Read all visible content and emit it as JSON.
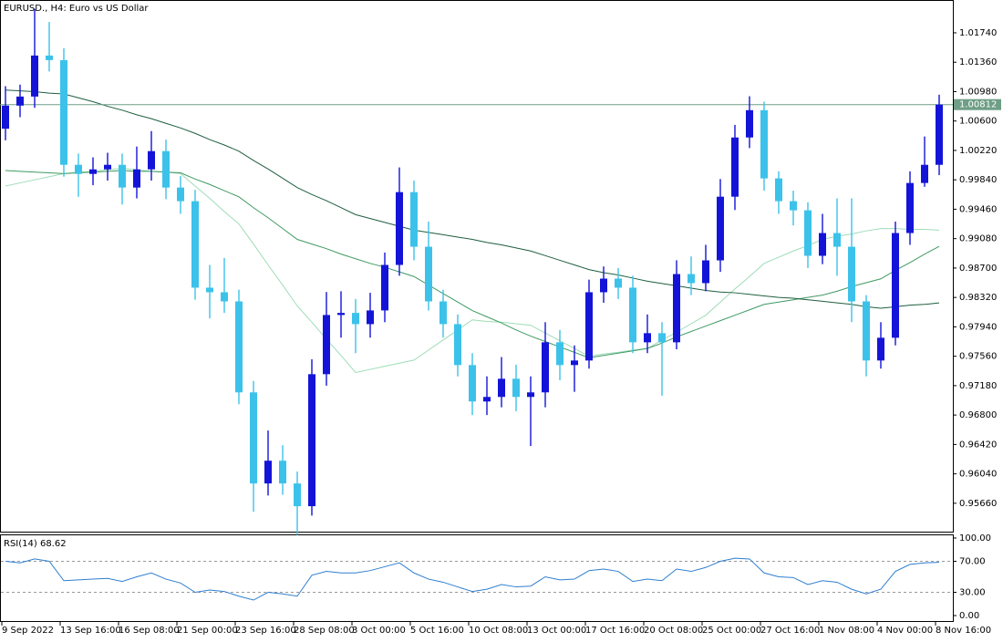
{
  "chart_data": [
    {
      "type": "candlestick",
      "title": "EURUSD., H4:  Euro vs US Dollar",
      "categories": [
        "9 Sep 2022",
        null,
        null,
        null,
        "13 Sep 16:00",
        null,
        null,
        null,
        "16 Sep 08:00",
        null,
        null,
        null,
        "21 Sep 00:00",
        null,
        null,
        null,
        "23 Sep 16:00",
        null,
        null,
        null,
        "28 Sep 08:00",
        null,
        null,
        null,
        "3 Oct 00:00",
        null,
        null,
        null,
        "5 Oct 16:00",
        null,
        null,
        null,
        "10 Oct 08:00",
        null,
        null,
        null,
        "13 Oct 00:00",
        null,
        null,
        null,
        "17 Oct 16:00",
        null,
        null,
        null,
        "20 Oct 08:00",
        null,
        null,
        null,
        "25 Oct 00:00",
        null,
        null,
        null,
        "27 Oct 16:00",
        null,
        null,
        null,
        "1 Nov 08:00",
        null,
        null,
        null,
        "4 Nov 00:00",
        null,
        null,
        null,
        "8 Nov 16:00"
      ],
      "open": [
        1.005,
        1.00799,
        1.00916,
        1.01446,
        1.01387,
        1.00034,
        0.99916,
        0.99975,
        1.00034,
        0.9974,
        0.99975,
        1.00211,
        0.9974,
        0.99564,
        0.98446,
        0.98387,
        0.98269,
        0.97093,
        0.95916,
        0.9621,
        0.95916,
        0.95622,
        0.97328,
        0.98093,
        0.9812,
        0.97975,
        0.98152,
        0.9874,
        0.99681,
        0.98975,
        0.98269,
        0.97975,
        0.97446,
        0.96975,
        0.97034,
        0.97269,
        0.97034,
        0.97093,
        0.9774,
        0.97446,
        0.97505,
        0.98387,
        0.98563,
        0.98446,
        0.9774,
        0.97858,
        0.9774,
        0.98622,
        0.98505,
        0.98799,
        0.99622,
        1.00387,
        1.0074,
        0.99858,
        0.99564,
        0.99446,
        0.98858,
        0.99152,
        0.98975,
        0.98269,
        0.97505,
        0.97799,
        0.99152,
        0.99799,
        1.00034
      ],
      "high": [
        1.0105,
        1.0107,
        1.0205,
        1.0188,
        1.0154,
        1.0018,
        1.0013,
        1.0019,
        1.0018,
        1.0027,
        1.0047,
        1.0036,
        0.9989,
        0.9971,
        0.9874,
        0.9883,
        0.9842,
        0.9724,
        0.966,
        0.9641,
        0.9607,
        0.9752,
        0.9839,
        0.984,
        0.983,
        0.9838,
        0.989,
        1.0,
        0.9983,
        0.993,
        0.9842,
        0.981,
        0.976,
        0.973,
        0.9755,
        0.9745,
        0.973,
        0.98,
        0.979,
        0.977,
        0.9855,
        0.9872,
        0.987,
        0.986,
        0.981,
        0.98,
        0.988,
        0.9885,
        0.99,
        0.9985,
        1.0055,
        1.0092,
        1.0085,
        0.9995,
        0.997,
        0.9955,
        0.994,
        0.996,
        0.996,
        0.9835,
        0.98,
        0.993,
        0.9995,
        1.004,
        1.0094
      ],
      "low": [
        1.0035,
        1.0065,
        1.0077,
        1.0124,
        0.9988,
        0.9962,
        0.9977,
        0.9983,
        0.9952,
        0.996,
        0.9983,
        0.9959,
        0.994,
        0.9829,
        0.9805,
        0.9812,
        0.9694,
        0.9555,
        0.9576,
        0.9577,
        0.9525,
        0.955,
        0.9718,
        0.978,
        0.976,
        0.978,
        0.98,
        0.986,
        0.988,
        0.9815,
        0.978,
        0.973,
        0.968,
        0.968,
        0.969,
        0.9685,
        0.964,
        0.969,
        0.9725,
        0.971,
        0.974,
        0.9825,
        0.983,
        0.976,
        0.976,
        0.9705,
        0.9765,
        0.9835,
        0.984,
        0.9865,
        0.9945,
        1.0025,
        0.997,
        0.994,
        0.9925,
        0.987,
        0.9875,
        0.986,
        0.98,
        0.973,
        0.974,
        0.977,
        0.99,
        0.9975,
        0.999
      ],
      "close": [
        1.00799,
        1.00916,
        1.01446,
        1.01387,
        1.00034,
        0.99916,
        0.99975,
        1.00034,
        0.9974,
        0.99975,
        1.00211,
        0.9974,
        0.99564,
        0.98446,
        0.98387,
        0.98269,
        0.97093,
        0.95916,
        0.9621,
        0.95916,
        0.95622,
        0.97328,
        0.98093,
        0.9812,
        0.97975,
        0.98152,
        0.9874,
        0.99681,
        0.98975,
        0.98269,
        0.97975,
        0.97446,
        0.96975,
        0.97034,
        0.97269,
        0.97034,
        0.97093,
        0.9774,
        0.97446,
        0.97505,
        0.98387,
        0.98563,
        0.98446,
        0.9774,
        0.97858,
        0.9774,
        0.98622,
        0.98505,
        0.98799,
        0.99622,
        1.00387,
        1.0074,
        0.99858,
        0.99564,
        0.99446,
        0.98858,
        0.99152,
        0.98975,
        0.98269,
        0.97505,
        0.97799,
        0.99152,
        0.99799,
        1.00034,
        1.00812
      ],
      "up_color": "#1414d8",
      "down_color": "#3cc2ea",
      "series": [
        {
          "color": "#9edcb8",
          "values": [
            0.9976,
            0.998,
            0.9984,
            0.9988,
            0.9992,
            0.9994,
            0.9995,
            0.9997,
            0.9999,
            0.9997,
            0.9995,
            0.9994,
            0.9992,
            0.9976,
            0.996,
            0.9943,
            0.9927,
            0.9901,
            0.9874,
            0.9848,
            0.9821,
            0.98,
            0.9778,
            0.9757,
            0.9735,
            0.9739,
            0.9743,
            0.9747,
            0.9751,
            0.9764,
            0.9777,
            0.979,
            0.9803,
            0.9801,
            0.98,
            0.9798,
            0.9796,
            0.9786,
            0.9776,
            0.9766,
            0.9756,
            0.9759,
            0.9761,
            0.9764,
            0.9766,
            0.9777,
            0.9787,
            0.9798,
            0.9809,
            0.9826,
            0.9843,
            0.9859,
            0.9876,
            0.9884,
            0.9892,
            0.9899,
            0.9907,
            0.9911,
            0.9914,
            0.9918,
            0.9921,
            0.9921,
            0.992,
            0.992,
            0.9919
          ]
        },
        {
          "color": "#3f9a62",
          "values": [
            0.9996,
            0.9995,
            0.9994,
            0.9993,
            0.9992,
            0.9993,
            0.9994,
            0.9995,
            0.9996,
            0.9995,
            0.9995,
            0.9994,
            0.9993,
            0.9985,
            0.9978,
            0.997,
            0.9962,
            0.9948,
            0.9935,
            0.9921,
            0.9907,
            0.9901,
            0.9895,
            0.9888,
            0.9882,
            0.9876,
            0.9871,
            0.9865,
            0.9859,
            0.9848,
            0.9837,
            0.9826,
            0.9815,
            0.9807,
            0.9799,
            0.979,
            0.9782,
            0.9775,
            0.9768,
            0.9761,
            0.9754,
            0.9757,
            0.976,
            0.9763,
            0.9766,
            0.9773,
            0.9781,
            0.9788,
            0.9795,
            0.9802,
            0.9809,
            0.9816,
            0.9823,
            0.9826,
            0.9829,
            0.9832,
            0.9835,
            0.984,
            0.9846,
            0.9851,
            0.9856,
            0.9867,
            0.9877,
            0.9888,
            0.9898
          ]
        },
        {
          "color": "#1f5e3e",
          "values": [
            1.01,
            1.0099,
            1.0098,
            1.0096,
            1.0095,
            1.009,
            1.0085,
            1.0079,
            1.0074,
            1.0068,
            1.0063,
            1.0057,
            1.0051,
            1.0044,
            1.0036,
            1.0029,
            1.0021,
            1.0009,
            0.9998,
            0.9986,
            0.9974,
            0.9965,
            0.9957,
            0.9948,
            0.9939,
            0.9934,
            0.9929,
            0.9924,
            0.9919,
            0.9916,
            0.9913,
            0.991,
            0.9907,
            0.9903,
            0.99,
            0.9896,
            0.9892,
            0.9886,
            0.988,
            0.9874,
            0.9868,
            0.9864,
            0.9861,
            0.9857,
            0.9853,
            0.985,
            0.9847,
            0.9844,
            0.9841,
            0.9839,
            0.9838,
            0.9836,
            0.9834,
            0.9832,
            0.9831,
            0.9829,
            0.9827,
            0.9825,
            0.9823,
            0.982,
            0.9818,
            0.982,
            0.9822,
            0.9823,
            0.9825
          ]
        }
      ],
      "current_price": {
        "value": 1.00812,
        "label": "1.00812"
      },
      "current_price_color": "#6e9e86",
      "ylim": [
        0.95293,
        1.02152
      ],
      "yticks": [
        {
          "value": 1.0174,
          "label": "1.01740"
        },
        {
          "value": 1.0136,
          "label": "1.01360"
        },
        {
          "value": 1.0098,
          "label": "1.00980"
        },
        {
          "value": 1.006,
          "label": "1.00600"
        },
        {
          "value": 1.0022,
          "label": "1.00220"
        },
        {
          "value": 0.9984,
          "label": "0.99840"
        },
        {
          "value": 0.9946,
          "label": "0.99460"
        },
        {
          "value": 0.9908,
          "label": "0.99080"
        },
        {
          "value": 0.987,
          "label": "0.98700"
        },
        {
          "value": 0.9832,
          "label": "0.98320"
        },
        {
          "value": 0.9794,
          "label": "0.97940"
        },
        {
          "value": 0.9756,
          "label": "0.97560"
        },
        {
          "value": 0.9718,
          "label": "0.97180"
        },
        {
          "value": 0.968,
          "label": "0.96800"
        },
        {
          "value": 0.9642,
          "label": "0.96420"
        },
        {
          "value": 0.9604,
          "label": "0.96040"
        },
        {
          "value": 0.9566,
          "label": "0.95660"
        }
      ]
    },
    {
      "type": "line",
      "title": "RSI(14) 68.62",
      "series": [
        {
          "color": "#2f7fd0",
          "values": [
            70,
            68,
            73,
            70,
            45,
            46,
            47,
            48,
            44,
            50,
            55,
            47,
            42,
            30,
            33,
            31,
            25,
            20,
            30,
            28,
            25,
            52,
            57,
            55,
            55,
            58,
            63,
            68,
            55,
            47,
            43,
            37,
            31,
            34,
            40,
            37,
            38,
            50,
            46,
            47,
            58,
            60,
            57,
            44,
            47,
            45,
            60,
            57,
            62,
            70,
            74,
            73,
            55,
            50,
            49,
            40,
            45,
            43,
            34,
            28,
            34,
            57,
            66,
            68,
            68.62
          ]
        }
      ],
      "levels": [
        30,
        70
      ],
      "ylim": [
        -8.2,
        103.5
      ],
      "yticks": [
        {
          "value": 100,
          "label": "100.00"
        },
        {
          "value": 70,
          "label": "70.00"
        },
        {
          "value": 30,
          "label": "30.00"
        },
        {
          "value": 0,
          "label": "0.00"
        }
      ]
    }
  ]
}
